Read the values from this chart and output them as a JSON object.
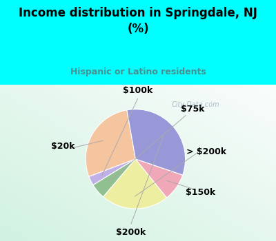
{
  "title": "Income distribution in Springdale, NJ\n(%)",
  "subtitle": "Hispanic or Latino residents",
  "labels": [
    "$20k",
    "$100k",
    "$75k",
    "> $200k",
    "$150k",
    "$200k"
  ],
  "sizes": [
    28,
    3,
    5,
    22,
    9,
    33
  ],
  "colors": [
    "#F5C5A0",
    "#C0B0E8",
    "#90C090",
    "#EEEEA0",
    "#F0A8B8",
    "#9898D8"
  ],
  "background_top": "#00FFFF",
  "background_plot_tl": "#D0F0E0",
  "background_plot_br": "#F8FFFF",
  "title_color": "#000000",
  "subtitle_color": "#4A9090",
  "startangle": 100,
  "label_fontsize": 9
}
